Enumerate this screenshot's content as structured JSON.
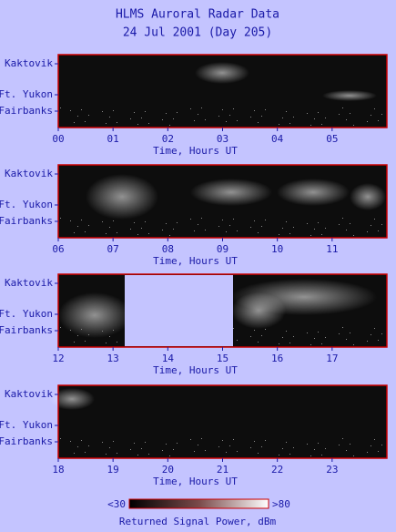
{
  "title": "HLMS Auroral Radar Data",
  "subtitle": "24 Jul 2001 (Day 205)",
  "chart_data": [
    {
      "type": "heatmap",
      "xlabel": "Time, Hours UT",
      "xlim": [
        0,
        6
      ],
      "xticks": [
        {
          "value": 0,
          "label": "00"
        },
        {
          "value": 1,
          "label": "01"
        },
        {
          "value": 2,
          "label": "02"
        },
        {
          "value": 3,
          "label": "03"
        },
        {
          "value": 4,
          "label": "04"
        },
        {
          "value": 5,
          "label": "05"
        }
      ],
      "ycategories": [
        "Kaktovik",
        "Ft. Yukon",
        "Fairbanks"
      ]
    },
    {
      "type": "heatmap",
      "xlabel": "Time, Hours UT",
      "xlim": [
        6,
        12
      ],
      "xticks": [
        {
          "value": 6,
          "label": "06"
        },
        {
          "value": 7,
          "label": "07"
        },
        {
          "value": 8,
          "label": "08"
        },
        {
          "value": 9,
          "label": "09"
        },
        10,
        11
      ],
      "ycategories": [
        "Kaktovik",
        "Ft. Yukon",
        "Fairbanks"
      ]
    },
    {
      "type": "heatmap",
      "xlabel": "Time, Hours UT",
      "xlim": [
        12,
        18
      ],
      "xticks": [
        12,
        13,
        14,
        15,
        16,
        17
      ],
      "ycategories": [
        "Kaktovik",
        "Ft. Yukon",
        "Fairbanks"
      ]
    },
    {
      "type": "heatmap",
      "xlabel": "Time, Hours UT",
      "xlim": [
        18,
        24
      ],
      "xticks": [
        18,
        19,
        20,
        21,
        22,
        23
      ],
      "ycategories": [
        "Kaktovik",
        "Ft. Yukon",
        "Fairbanks"
      ]
    }
  ],
  "colorbar": {
    "min": {
      "value": 30,
      "label": "<30"
    },
    "max": {
      "value": 80,
      "label": ">80"
    },
    "label": "Returned Signal Power, dBm"
  }
}
